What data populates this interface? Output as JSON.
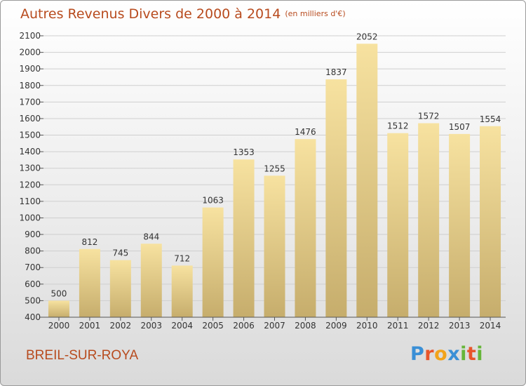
{
  "header": {
    "title": "Autres Revenus Divers de 2000 à 2014",
    "unit": "(en milliers d'€)"
  },
  "footer": {
    "commune": "BREIL-SUR-ROYA",
    "logo_letters": [
      "P",
      "r",
      "o",
      "x",
      "i",
      "t",
      "i"
    ],
    "logo_colors": [
      "#3a8fd6",
      "#e8552b",
      "#f2a31b",
      "#3a8fd6",
      "#66b63a",
      "#e8552b",
      "#66b63a"
    ]
  },
  "colors": {
    "title": "#b84b1e",
    "bar_top": "#f7e2a0",
    "bar_bottom": "#c6ad6c",
    "grid": "#cfcfcf",
    "axis_text": "#333333"
  },
  "chart_data": {
    "type": "bar",
    "categories": [
      "2000",
      "2001",
      "2002",
      "2003",
      "2004",
      "2005",
      "2006",
      "2007",
      "2008",
      "2009",
      "2010",
      "2011",
      "2012",
      "2013",
      "2014"
    ],
    "values": [
      500,
      812,
      745,
      844,
      712,
      1063,
      1353,
      1255,
      1476,
      1837,
      2052,
      1512,
      1572,
      1507,
      1554
    ],
    "ylim": [
      400,
      2100
    ],
    "yticks": [
      400,
      500,
      600,
      700,
      800,
      900,
      1000,
      1100,
      1200,
      1300,
      1400,
      1500,
      1600,
      1700,
      1800,
      1900,
      2000,
      2100
    ],
    "grid": true,
    "data_labels": true
  }
}
